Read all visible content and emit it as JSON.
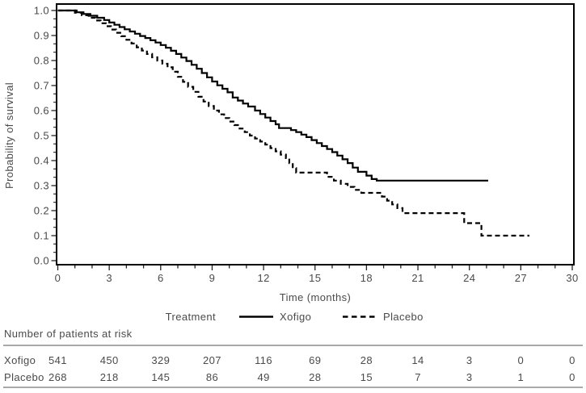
{
  "chart_data": {
    "type": "line",
    "subtype": "kaplan-meier-step",
    "title": "",
    "xlabel": "Time (months)",
    "ylabel": "Probability of survival",
    "xlim": [
      0,
      30
    ],
    "ylim": [
      0.0,
      1.0
    ],
    "grid": false,
    "x_major_ticks": [
      0,
      3,
      6,
      9,
      12,
      15,
      18,
      21,
      24,
      27,
      30
    ],
    "x_minor_step_months": 1,
    "y_major_tick_labels": [
      "0.0",
      "0.1",
      "0.2",
      "0.3",
      "0.4",
      "0.5",
      "0.6",
      "0.7",
      "0.8",
      "0.9",
      "1.0"
    ],
    "y_minor_ticks_per_major": 2,
    "legend": {
      "title": "Treatment",
      "position": "bottom",
      "entries": [
        {
          "label": "Xofigo",
          "style": "solid"
        },
        {
          "label": "Placebo",
          "style": "dashed"
        }
      ]
    },
    "series": [
      {
        "name": "Xofigo",
        "line": "solid",
        "color": "#000000",
        "points": [
          [
            0,
            1.0
          ],
          [
            1.1,
            0.993
          ],
          [
            1.5,
            0.986
          ],
          [
            1.9,
            0.979
          ],
          [
            2.3,
            0.971
          ],
          [
            2.7,
            0.962
          ],
          [
            3.0,
            0.952
          ],
          [
            3.3,
            0.943
          ],
          [
            3.6,
            0.934
          ],
          [
            3.9,
            0.925
          ],
          [
            4.2,
            0.916
          ],
          [
            4.5,
            0.907
          ],
          [
            4.8,
            0.898
          ],
          [
            5.1,
            0.89
          ],
          [
            5.4,
            0.881
          ],
          [
            5.7,
            0.872
          ],
          [
            6.0,
            0.862
          ],
          [
            6.3,
            0.851
          ],
          [
            6.6,
            0.839
          ],
          [
            6.9,
            0.826
          ],
          [
            7.2,
            0.812
          ],
          [
            7.5,
            0.798
          ],
          [
            7.8,
            0.783
          ],
          [
            8.1,
            0.767
          ],
          [
            8.4,
            0.75
          ],
          [
            8.7,
            0.733
          ],
          [
            9.0,
            0.716
          ],
          [
            9.3,
            0.701
          ],
          [
            9.6,
            0.687
          ],
          [
            9.9,
            0.673
          ],
          [
            10.2,
            0.652
          ],
          [
            10.5,
            0.64
          ],
          [
            10.8,
            0.628
          ],
          [
            11.1,
            0.616
          ],
          [
            11.5,
            0.6
          ],
          [
            11.8,
            0.586
          ],
          [
            12.1,
            0.572
          ],
          [
            12.4,
            0.558
          ],
          [
            12.7,
            0.545
          ],
          [
            12.9,
            0.53
          ],
          [
            13.6,
            0.522
          ],
          [
            13.9,
            0.514
          ],
          [
            14.2,
            0.504
          ],
          [
            14.5,
            0.494
          ],
          [
            14.8,
            0.482
          ],
          [
            15.1,
            0.47
          ],
          [
            15.4,
            0.458
          ],
          [
            15.7,
            0.446
          ],
          [
            16.0,
            0.434
          ],
          [
            16.3,
            0.42
          ],
          [
            16.6,
            0.405
          ],
          [
            16.9,
            0.39
          ],
          [
            17.2,
            0.372
          ],
          [
            17.5,
            0.355
          ],
          [
            18.0,
            0.34
          ],
          [
            18.3,
            0.326
          ],
          [
            18.6,
            0.32
          ],
          [
            25.1,
            0.32
          ]
        ]
      },
      {
        "name": "Placebo",
        "line": "dashed",
        "color": "#000000",
        "points": [
          [
            0,
            1.0
          ],
          [
            1.0,
            0.991
          ],
          [
            1.4,
            0.981
          ],
          [
            1.8,
            0.971
          ],
          [
            2.2,
            0.96
          ],
          [
            2.5,
            0.949
          ],
          [
            2.8,
            0.937
          ],
          [
            3.1,
            0.924
          ],
          [
            3.4,
            0.911
          ],
          [
            3.7,
            0.897
          ],
          [
            4.0,
            0.883
          ],
          [
            4.3,
            0.868
          ],
          [
            4.6,
            0.853
          ],
          [
            4.9,
            0.84
          ],
          [
            5.2,
            0.826
          ],
          [
            5.5,
            0.813
          ],
          [
            5.8,
            0.8
          ],
          [
            6.1,
            0.787
          ],
          [
            6.4,
            0.773
          ],
          [
            6.7,
            0.755
          ],
          [
            7.0,
            0.735
          ],
          [
            7.3,
            0.715
          ],
          [
            7.6,
            0.695
          ],
          [
            7.9,
            0.675
          ],
          [
            8.2,
            0.655
          ],
          [
            8.5,
            0.636
          ],
          [
            8.8,
            0.618
          ],
          [
            9.1,
            0.6
          ],
          [
            9.4,
            0.585
          ],
          [
            9.7,
            0.57
          ],
          [
            10.0,
            0.556
          ],
          [
            10.3,
            0.542
          ],
          [
            10.6,
            0.528
          ],
          [
            10.9,
            0.514
          ],
          [
            11.2,
            0.5
          ],
          [
            11.5,
            0.488
          ],
          [
            11.8,
            0.476
          ],
          [
            12.1,
            0.464
          ],
          [
            12.4,
            0.45
          ],
          [
            12.7,
            0.437
          ],
          [
            13.0,
            0.424
          ],
          [
            13.3,
            0.41
          ],
          [
            13.5,
            0.39
          ],
          [
            13.7,
            0.37
          ],
          [
            13.9,
            0.352
          ],
          [
            15.7,
            0.335
          ],
          [
            16.1,
            0.32
          ],
          [
            16.5,
            0.307
          ],
          [
            16.9,
            0.295
          ],
          [
            17.3,
            0.283
          ],
          [
            17.7,
            0.271
          ],
          [
            18.9,
            0.256
          ],
          [
            19.2,
            0.24
          ],
          [
            19.5,
            0.225
          ],
          [
            19.8,
            0.21
          ],
          [
            20.1,
            0.19
          ],
          [
            23.7,
            0.15
          ],
          [
            24.7,
            0.1
          ],
          [
            27.5,
            0.1
          ]
        ]
      }
    ]
  },
  "at_risk_table": {
    "heading": "Number of patients at risk",
    "time_points": [
      0,
      3,
      6,
      9,
      12,
      15,
      18,
      21,
      24,
      27,
      30
    ],
    "rows": [
      {
        "label": "Xofigo",
        "values": [
          541,
          450,
          329,
          207,
          116,
          69,
          28,
          14,
          3,
          0,
          0
        ]
      },
      {
        "label": "Placebo",
        "values": [
          268,
          218,
          145,
          86,
          49,
          28,
          15,
          7,
          3,
          1,
          0
        ]
      }
    ]
  },
  "colors": {
    "curve": "#000000",
    "frame": "#000000",
    "tick": "#222222",
    "text": "#4a4a4a",
    "rule": "#8c8c8c",
    "background": "#ffffff"
  }
}
